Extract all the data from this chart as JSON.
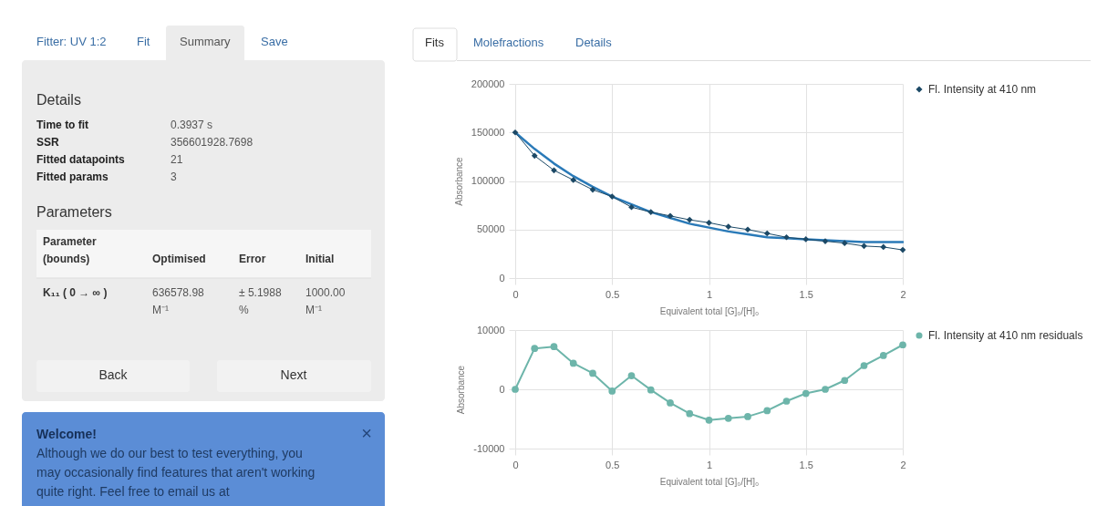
{
  "chart_data": [
    {
      "type": "other",
      "annotations": [
        "Fitter: UV 1:2",
        "Fit",
        "Summary",
        "Save"
      ]
    },
    {
      "type": "other",
      "title": "Details",
      "annotations": [
        "Time to fit",
        "0.3937 s",
        "SSR",
        "356601928.7698",
        "Fitted datapoints",
        "21",
        "Fitted params",
        "3"
      ]
    },
    {
      "type": "other",
      "title": "Parameters",
      "annotations": [
        "Parameter\n(bounds)",
        "Optimised",
        "Error",
        "Initial",
        "K₁₁ ( 0 → ∞ )",
        "636578.98\nM⁻¹",
        "± 5.1988\n%",
        "1000.00\nM⁻¹"
      ]
    },
    {
      "type": "other",
      "annotations": [
        "Back",
        "Next"
      ]
    },
    {
      "type": "other",
      "annotations": [
        "Welcome!",
        "Although we do our best to test everything, you\nmay occasionally find features that aren't working\nquite right. Feel free to email us at",
        "×"
      ]
    },
    {
      "type": "other",
      "annotations": [
        "Fits",
        "Molefractions",
        "Details"
      ]
    },
    {
      "type": "line",
      "xlabel": "Equivalent total [G]₀/[H]₀",
      "ylabel": "Absorbance",
      "x": [
        0,
        0.1,
        0.2,
        0.3,
        0.4,
        0.5,
        0.6,
        0.7,
        0.8,
        0.9,
        1,
        1.1,
        1.2,
        1.3,
        1.4,
        1.5,
        1.6,
        1.7,
        1.8,
        1.9,
        2
      ],
      "xlim": [
        0,
        2
      ],
      "xticks": [
        0,
        0.5,
        1,
        1.5,
        2
      ],
      "ylim": [
        0,
        200000
      ],
      "yticks": [
        0,
        50000,
        100000,
        150000,
        200000
      ],
      "grid": true,
      "legend": "top right",
      "series": [
        {
          "color": "#2a7ab8",
          "marker": "none",
          "values": [
            150000,
            133000,
            118000,
            105000,
            94000,
            84000,
            76000,
            68000,
            62000,
            56000,
            52000,
            48000,
            45000,
            42000,
            41000,
            40000,
            39000,
            38000,
            37000,
            37000,
            37000
          ]
        },
        {
          "name": "Fl. Intensity at 410 nm",
          "color": "#1c4966",
          "marker": "diamond",
          "values": [
            150000,
            126000,
            111000,
            101000,
            91000,
            84000,
            73000,
            68000,
            64000,
            60000,
            57000,
            53000,
            50000,
            46000,
            42000,
            40000,
            38000,
            36000,
            33000,
            32000,
            29000
          ]
        }
      ]
    },
    {
      "type": "line",
      "xlabel": "Equivalent total [G]₀/[H]₀",
      "ylabel": "Absorbance",
      "x": [
        0,
        0.1,
        0.2,
        0.3,
        0.4,
        0.5,
        0.6,
        0.7,
        0.8,
        0.9,
        1,
        1.1,
        1.2,
        1.3,
        1.4,
        1.5,
        1.6,
        1.7,
        1.8,
        1.9,
        2
      ],
      "xlim": [
        0,
        2
      ],
      "xticks": [
        0,
        0.5,
        1,
        1.5,
        2
      ],
      "ylim": [
        -10000,
        10000
      ],
      "yticks": [
        -10000,
        0,
        10000
      ],
      "grid": true,
      "legend": "top right",
      "series": [
        {
          "name": "Fl. Intensity at 410 nm residuals",
          "color": "#6db5aa",
          "marker": "circle",
          "values": [
            0,
            6900,
            7200,
            4400,
            2700,
            -300,
            2300,
            -100,
            -2300,
            -4100,
            -5200,
            -4900,
            -4600,
            -3600,
            -2000,
            -700,
            0,
            1500,
            4000,
            5700,
            7500
          ]
        }
      ]
    }
  ]
}
